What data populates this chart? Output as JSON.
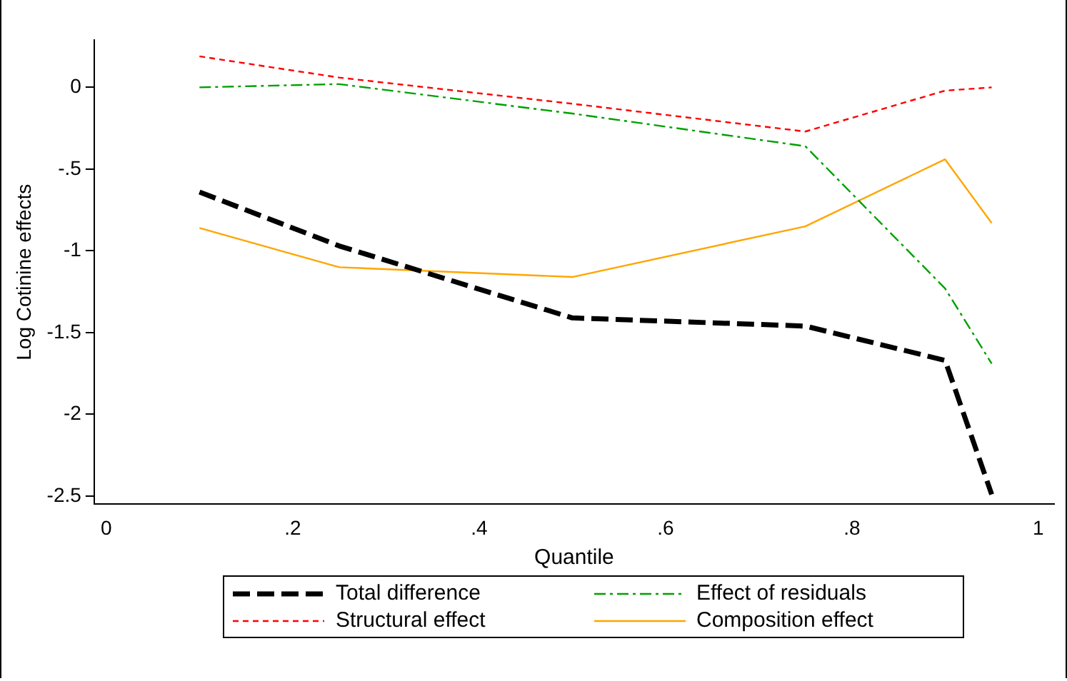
{
  "chart_data": {
    "type": "line",
    "xlabel": "Quantile",
    "ylabel": "Log Cotinine effects",
    "x": [
      0.1,
      0.25,
      0.5,
      0.75,
      0.9,
      0.95
    ],
    "series": [
      {
        "name": "Total difference",
        "color": "#000000",
        "line_style": "dashed",
        "values": [
          -0.64,
          -0.97,
          -1.41,
          -1.46,
          -1.67,
          -2.49
        ]
      },
      {
        "name": "Effect of residuals",
        "color": "#00a000",
        "line_style": "dashdot",
        "values": [
          0,
          0.02,
          -0.16,
          -0.36,
          -1.23,
          -1.69
        ]
      },
      {
        "name": "Structural effect",
        "color": "#ff0000",
        "line_style": "dotted",
        "values": [
          0.19,
          0.06,
          -0.1,
          -0.27,
          -0.02,
          0
        ]
      },
      {
        "name": "Composition effect",
        "color": "#ffa500",
        "line_style": "solid",
        "values": [
          -0.86,
          -1.1,
          -1.16,
          -0.85,
          -0.44,
          -0.83
        ]
      }
    ],
    "xlim": [
      -0.013,
      1.017
    ],
    "ylim": [
      -2.55,
      0.29
    ],
    "xticks": [
      0,
      {
        "value": 0.2,
        "label": ".2"
      },
      {
        "value": 0.4,
        "label": ".4"
      },
      {
        "value": 0.6,
        "label": ".6"
      },
      {
        "value": 0.8,
        "label": ".8"
      },
      1
    ],
    "yticks": [
      0,
      {
        "value": -0.5,
        "label": "-.5"
      },
      -1,
      {
        "value": -1.5,
        "label": "-1.5"
      },
      -2,
      {
        "value": -2.5,
        "label": "-2.5"
      }
    ],
    "grid": false,
    "legend": "bottom",
    "marker": "none"
  }
}
